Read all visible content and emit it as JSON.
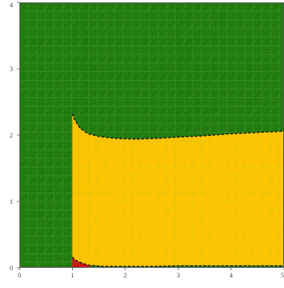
{
  "chart_data": {
    "type": "area",
    "title": "",
    "xlabel": "",
    "ylabel": "",
    "xlim": [
      0,
      5
    ],
    "ylim": [
      0,
      4
    ],
    "xticks": [
      "0",
      "1",
      "2",
      "3",
      "4",
      "5"
    ],
    "yticks": [
      "0",
      "1",
      "2",
      "3",
      "4"
    ],
    "grid": true,
    "legend": "none",
    "colors": {
      "background_region": "#1f7a10",
      "middle_region": "#ffc500",
      "small_region": "#cc1111",
      "boundary": "#111111",
      "mesh_lines": "#8fbf3a"
    },
    "regions": [
      {
        "color_key": "background_region",
        "description_polygon": [
          [
            0,
            0
          ],
          [
            5,
            0
          ],
          [
            5,
            4
          ],
          [
            0,
            4
          ]
        ]
      },
      {
        "color_key": "middle_region",
        "polygon": [
          [
            1,
            2.32
          ],
          [
            1.05,
            2.22
          ],
          [
            1.15,
            2.1
          ],
          [
            1.3,
            2.02
          ],
          [
            1.5,
            1.98
          ],
          [
            1.8,
            1.95
          ],
          [
            2.2,
            1.94
          ],
          [
            2.6,
            1.95
          ],
          [
            3.0,
            1.97
          ],
          [
            3.5,
            1.99
          ],
          [
            4.0,
            2.02
          ],
          [
            4.5,
            2.04
          ],
          [
            5,
            2.06
          ],
          [
            5,
            0.03
          ],
          [
            4.5,
            0.03
          ],
          [
            4.0,
            0.03
          ],
          [
            3.5,
            0.03
          ],
          [
            3.0,
            0.03
          ],
          [
            2.5,
            0.02
          ],
          [
            2.0,
            0.02
          ],
          [
            1.6,
            0.02
          ],
          [
            1.3,
            0.04
          ],
          [
            1.15,
            0.08
          ],
          [
            1.05,
            0.12
          ],
          [
            1,
            0.16
          ]
        ]
      },
      {
        "color_key": "small_region",
        "polygon": [
          [
            1,
            0
          ],
          [
            1.4,
            0
          ],
          [
            1.3,
            0.04
          ],
          [
            1.15,
            0.08
          ],
          [
            1.05,
            0.12
          ],
          [
            1,
            0.16
          ]
        ]
      }
    ],
    "boundaries": [
      {
        "points": [
          [
            1,
            2.32
          ],
          [
            1.05,
            2.22
          ],
          [
            1.15,
            2.1
          ],
          [
            1.3,
            2.02
          ],
          [
            1.5,
            1.98
          ],
          [
            1.8,
            1.95
          ],
          [
            2.2,
            1.94
          ],
          [
            2.6,
            1.95
          ],
          [
            3.0,
            1.97
          ],
          [
            3.5,
            1.99
          ],
          [
            4.0,
            2.02
          ],
          [
            4.5,
            2.04
          ],
          [
            5,
            2.06
          ]
        ]
      },
      {
        "points": [
          [
            1,
            0.16
          ],
          [
            1.05,
            0.12
          ],
          [
            1.15,
            0.08
          ],
          [
            1.3,
            0.04
          ],
          [
            1.6,
            0.02
          ],
          [
            2.0,
            0.02
          ],
          [
            2.5,
            0.02
          ],
          [
            3.0,
            0.03
          ],
          [
            3.5,
            0.03
          ],
          [
            4.0,
            0.03
          ],
          [
            4.5,
            0.03
          ],
          [
            5,
            0.03
          ]
        ]
      }
    ]
  }
}
